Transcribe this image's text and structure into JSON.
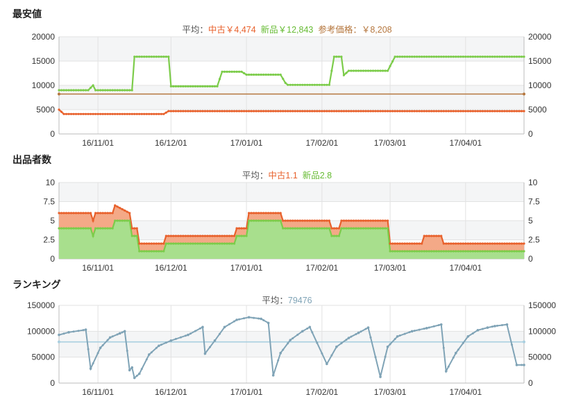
{
  "panels": {
    "price": {
      "title": "最安値",
      "avg_label": "平均：",
      "used_label": "中古￥4,474",
      "new_label": "新品￥12,843",
      "ref_label": "参考価格：￥8,208"
    },
    "sellers": {
      "title": "出品者数",
      "avg_label": "平均：",
      "used_label": "中古1.1",
      "new_label": "新品2.8"
    },
    "ranking": {
      "title": "ランキング",
      "avg_label": "平均：",
      "value_label": "79476"
    }
  },
  "colors": {
    "used": "#e8612c",
    "new": "#7ccc4a",
    "reference": "#b5763d",
    "ranking": "#7fa3b6",
    "ranking_avg": "#a9cfe0",
    "band": "#f4f5f6",
    "grid": "#e2e2e2"
  },
  "chart_data": [
    {
      "type": "line",
      "title": "最安値",
      "x_range": [
        "2016-10-16",
        "2017-04-25"
      ],
      "x_ticks": [
        "16/11/01",
        "16/12/01",
        "17/01/01",
        "17/02/01",
        "17/03/01",
        "17/04/01"
      ],
      "ylim": [
        0,
        20000
      ],
      "y_ticks": [
        "0",
        "5000",
        "10000",
        "15000",
        "20000"
      ],
      "grid": true,
      "series": [
        {
          "name": "中古",
          "points": [
            [
              "2016-10-16",
              5000
            ],
            [
              "2016-10-18",
              4100
            ],
            [
              "2016-11-28",
              4100
            ],
            [
              "2016-11-30",
              4700
            ],
            [
              "2017-04-25",
              4700
            ]
          ]
        },
        {
          "name": "新品",
          "points": [
            [
              "2016-10-16",
              9000
            ],
            [
              "2016-10-28",
              9000
            ],
            [
              "2016-10-30",
              10000
            ],
            [
              "2016-10-31",
              9000
            ],
            [
              "2016-11-15",
              9000
            ],
            [
              "2016-11-16",
              15900
            ],
            [
              "2016-11-30",
              15900
            ],
            [
              "2016-12-01",
              9800
            ],
            [
              "2016-12-20",
              9800
            ],
            [
              "2016-12-22",
              12800
            ],
            [
              "2016-12-30",
              12800
            ],
            [
              "2017-01-01",
              12200
            ],
            [
              "2017-01-15",
              12200
            ],
            [
              "2017-01-17",
              10500
            ],
            [
              "2017-01-18",
              10100
            ],
            [
              "2017-02-04",
              10100
            ],
            [
              "2017-02-06",
              15900
            ],
            [
              "2017-02-09",
              15900
            ],
            [
              "2017-02-10",
              12100
            ],
            [
              "2017-02-12",
              13000
            ],
            [
              "2017-02-28",
              13000
            ],
            [
              "2017-03-03",
              15900
            ],
            [
              "2017-04-25",
              15900
            ]
          ]
        },
        {
          "name": "参考価格",
          "points": [
            [
              "2016-10-16",
              8208
            ],
            [
              "2017-04-25",
              8208
            ]
          ]
        }
      ]
    },
    {
      "type": "area",
      "title": "出品者数",
      "x_range": [
        "2016-10-16",
        "2017-04-25"
      ],
      "x_ticks": [
        "16/11/01",
        "16/12/01",
        "17/01/01",
        "17/02/01",
        "17/03/01",
        "17/04/01"
      ],
      "ylim": [
        0,
        10
      ],
      "y_ticks": [
        "0",
        "2.5",
        "5",
        "7.5",
        "10"
      ],
      "grid": true,
      "stacked": true,
      "series": [
        {
          "name": "新品",
          "points": [
            [
              "2016-10-16",
              4
            ],
            [
              "2016-10-29",
              4
            ],
            [
              "2016-10-30",
              3
            ],
            [
              "2016-10-31",
              4
            ],
            [
              "2016-11-07",
              4
            ],
            [
              "2016-11-08",
              5
            ],
            [
              "2016-11-14",
              5
            ],
            [
              "2016-11-15",
              3
            ],
            [
              "2016-11-17",
              3
            ],
            [
              "2016-11-18",
              1
            ],
            [
              "2016-11-28",
              1
            ],
            [
              "2016-11-29",
              2
            ],
            [
              "2016-12-27",
              2
            ],
            [
              "2016-12-28",
              3
            ],
            [
              "2017-01-01",
              3
            ],
            [
              "2017-01-02",
              5
            ],
            [
              "2017-01-15",
              5
            ],
            [
              "2017-01-16",
              4
            ],
            [
              "2017-02-04",
              4
            ],
            [
              "2017-02-05",
              3
            ],
            [
              "2017-02-08",
              3
            ],
            [
              "2017-02-09",
              4
            ],
            [
              "2017-02-28",
              4
            ],
            [
              "2017-03-01",
              1
            ],
            [
              "2017-04-25",
              1
            ]
          ]
        },
        {
          "name": "中古",
          "points": [
            [
              "2016-10-16",
              2
            ],
            [
              "2016-10-29",
              2
            ],
            [
              "2016-10-30",
              2
            ],
            [
              "2016-10-31",
              2
            ],
            [
              "2016-11-07",
              2
            ],
            [
              "2016-11-08",
              2
            ],
            [
              "2016-11-11",
              1.5
            ],
            [
              "2016-11-14",
              1
            ],
            [
              "2016-11-15",
              1
            ],
            [
              "2016-11-17",
              1
            ],
            [
              "2016-11-18",
              1
            ],
            [
              "2016-11-28",
              1
            ],
            [
              "2016-11-29",
              1
            ],
            [
              "2016-12-27",
              1
            ],
            [
              "2016-12-28",
              1
            ],
            [
              "2017-01-01",
              1
            ],
            [
              "2017-01-02",
              1
            ],
            [
              "2017-01-15",
              1
            ],
            [
              "2017-01-16",
              1
            ],
            [
              "2017-02-04",
              1
            ],
            [
              "2017-02-05",
              1
            ],
            [
              "2017-02-08",
              1
            ],
            [
              "2017-02-09",
              1
            ],
            [
              "2017-02-28",
              1
            ],
            [
              "2017-03-01",
              1
            ],
            [
              "2017-03-14",
              1
            ],
            [
              "2017-03-15",
              2
            ],
            [
              "2017-03-22",
              2
            ],
            [
              "2017-03-23",
              1
            ],
            [
              "2017-04-25",
              1
            ]
          ]
        }
      ]
    },
    {
      "type": "line",
      "title": "ランキング",
      "x_range": [
        "2016-10-16",
        "2017-04-25"
      ],
      "x_ticks": [
        "16/11/01",
        "16/12/01",
        "17/01/01",
        "17/02/01",
        "17/03/01",
        "17/04/01"
      ],
      "ylim": [
        0,
        150000
      ],
      "y_ticks": [
        "0",
        "50000",
        "100000",
        "150000"
      ],
      "grid": true,
      "series": [
        {
          "name": "ランキング",
          "points": [
            [
              "2016-10-16",
              93000
            ],
            [
              "2016-10-20",
              98000
            ],
            [
              "2016-10-27",
              103000
            ],
            [
              "2016-10-29",
              28000
            ],
            [
              "2016-11-02",
              68000
            ],
            [
              "2016-11-06",
              88000
            ],
            [
              "2016-11-10",
              96000
            ],
            [
              "2016-11-12",
              100000
            ],
            [
              "2016-11-14",
              25000
            ],
            [
              "2016-11-15",
              30000
            ],
            [
              "2016-11-16",
              10000
            ],
            [
              "2016-11-18",
              18000
            ],
            [
              "2016-11-22",
              55000
            ],
            [
              "2016-11-26",
              72000
            ],
            [
              "2016-12-01",
              82000
            ],
            [
              "2016-12-08",
              93000
            ],
            [
              "2016-12-14",
              108000
            ],
            [
              "2016-12-15",
              57000
            ],
            [
              "2016-12-19",
              82000
            ],
            [
              "2016-12-23",
              108000
            ],
            [
              "2016-12-28",
              122000
            ],
            [
              "2017-01-02",
              127000
            ],
            [
              "2017-01-07",
              124000
            ],
            [
              "2017-01-10",
              116000
            ],
            [
              "2017-01-12",
              15000
            ],
            [
              "2017-01-15",
              58000
            ],
            [
              "2017-01-19",
              83000
            ],
            [
              "2017-01-24",
              100000
            ],
            [
              "2017-01-27",
              108000
            ],
            [
              "2017-02-03",
              37000
            ],
            [
              "2017-02-07",
              70000
            ],
            [
              "2017-02-12",
              87000
            ],
            [
              "2017-02-16",
              97000
            ],
            [
              "2017-02-20",
              107000
            ],
            [
              "2017-02-25",
              12000
            ],
            [
              "2017-02-28",
              70000
            ],
            [
              "2017-03-04",
              90000
            ],
            [
              "2017-03-10",
              100000
            ],
            [
              "2017-03-16",
              106000
            ],
            [
              "2017-03-22",
              113000
            ],
            [
              "2017-03-24",
              23000
            ],
            [
              "2017-03-28",
              58000
            ],
            [
              "2017-04-02",
              90000
            ],
            [
              "2017-04-06",
              102000
            ],
            [
              "2017-04-10",
              107000
            ],
            [
              "2017-04-13",
              110000
            ],
            [
              "2017-04-18",
              113000
            ],
            [
              "2017-04-22",
              35000
            ],
            [
              "2017-04-25",
              35000
            ]
          ]
        },
        {
          "name": "平均",
          "points": [
            [
              "2016-10-16",
              79476
            ],
            [
              "2017-04-25",
              79476
            ]
          ]
        }
      ]
    }
  ]
}
